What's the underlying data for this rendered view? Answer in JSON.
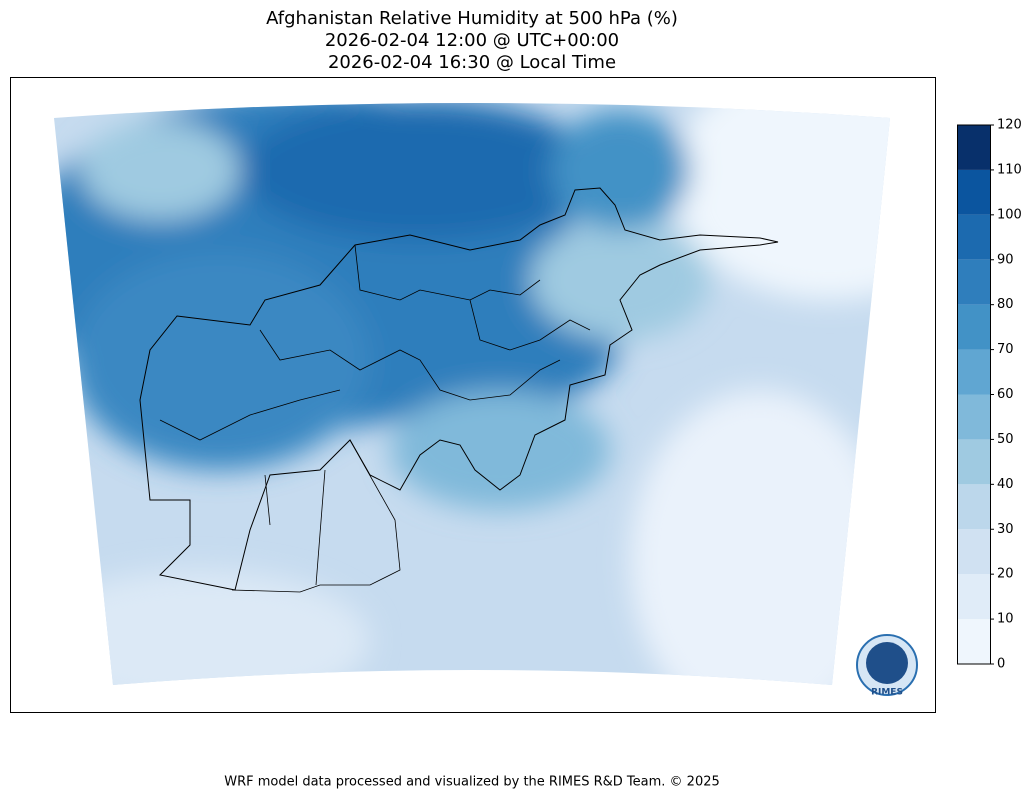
{
  "title": [
    "Afghanistan Relative Humidity at 500 hPa (%)",
    "2026-02-04 12:00 @ UTC+00:00",
    "2026-02-04 16:30 @ Local Time"
  ],
  "colorbar": {
    "levels": [
      0,
      10,
      20,
      30,
      40,
      50,
      60,
      70,
      80,
      90,
      100,
      110,
      120
    ],
    "colors": [
      "#eff6fd",
      "#e0ecf8",
      "#d0e1f2",
      "#bcd7eb",
      "#9fcae1",
      "#80b9da",
      "#60a6d2",
      "#4292c6",
      "#2f7ebc",
      "#1c6aaf",
      "#0b559f",
      "#08306b"
    ]
  },
  "logo": {
    "text": "RIMES"
  },
  "footer": "WRF model data processed and visualized by the RIMES R&D Team. © 2025"
}
